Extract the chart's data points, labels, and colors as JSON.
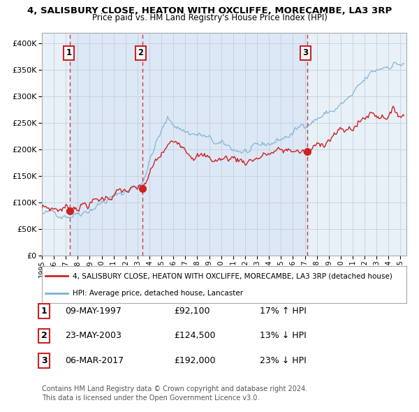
{
  "title": "4, SALISBURY CLOSE, HEATON WITH OXCLIFFE, MORECAMBE, LA3 3RP",
  "subtitle": "Price paid vs. HM Land Registry's House Price Index (HPI)",
  "sales": [
    {
      "date_num": 1997.36,
      "price": 92100,
      "label": "1",
      "date_str": "09-MAY-1997",
      "pct": "17%",
      "dir": "↑"
    },
    {
      "date_num": 2003.39,
      "price": 124500,
      "label": "2",
      "date_str": "23-MAY-2003",
      "pct": "13%",
      "dir": "↓"
    },
    {
      "date_num": 2017.18,
      "price": 192000,
      "label": "3",
      "date_str": "06-MAR-2017",
      "pct": "23%",
      "dir": "↓"
    }
  ],
  "legend_line1": "4, SALISBURY CLOSE, HEATON WITH OXCLIFFE, MORECAMBE, LA3 3RP (detached house)",
  "legend_line2": "HPI: Average price, detached house, Lancaster",
  "footer1": "Contains HM Land Registry data © Crown copyright and database right 2024.",
  "footer2": "This data is licensed under the Open Government Licence v3.0.",
  "hpi_color": "#7ab0d4",
  "price_color": "#cc2222",
  "sale_dot_color": "#cc2222",
  "dashed_line_color": "#cc2222",
  "shade_color": "#dce8f5",
  "background_color": "#ffffff",
  "plot_bg_color": "#e8f0f8",
  "grid_color": "#c0c8d8",
  "ylim": [
    0,
    420000
  ],
  "xlim_start": 1995.0,
  "xlim_end": 2025.5
}
